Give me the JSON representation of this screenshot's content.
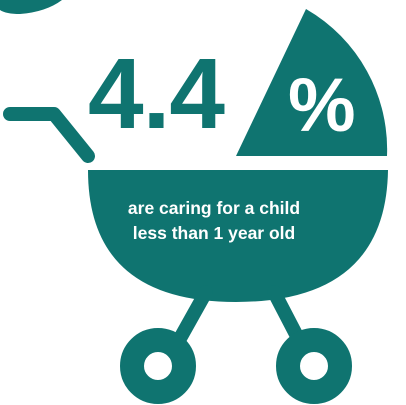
{
  "stat": {
    "value": "4.4",
    "unit": "%",
    "caption_line1": "are caring for a child",
    "caption_line2": "less than 1 year old"
  },
  "graphic": {
    "icon": "baby-carriage-icon",
    "color": "#0f7470",
    "text_color": "#ffffff"
  }
}
